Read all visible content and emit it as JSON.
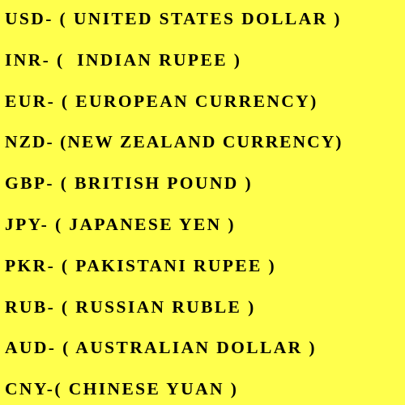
{
  "page": {
    "background_color": "#ffff4d",
    "text_color": "#000000"
  },
  "currencies": [
    {
      "text": "USD- ( UNITED STATES DOLLAR )"
    },
    {
      "text": "INR- (  INDIAN RUPEE )"
    },
    {
      "text": "EUR- ( EUROPEAN CURRENCY)"
    },
    {
      "text": "NZD- (NEW ZEALAND CURRENCY)"
    },
    {
      "text": "GBP- ( BRITISH POUND )"
    },
    {
      "text": "JPY- ( JAPANESE YEN )"
    },
    {
      "text": "PKR- ( PAKISTANI RUPEE )"
    },
    {
      "text": "RUB- ( RUSSIAN RUBLE )"
    },
    {
      "text": "AUD- ( AUSTRALIAN DOLLAR )"
    },
    {
      "text": "CNY-( CHINESE YUAN )"
    }
  ]
}
